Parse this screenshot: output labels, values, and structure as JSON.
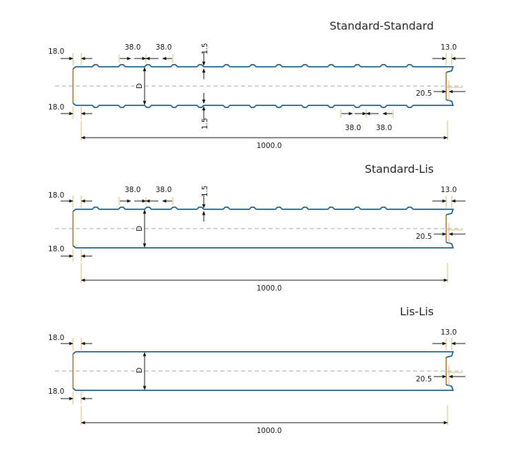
{
  "colors": {
    "panel_line": "#1f5f8a",
    "edge_line": "#b07a2a",
    "dim_line": "#111111",
    "ext_line": "#d8b870",
    "center_line": "#a8a8a8"
  },
  "sections": [
    {
      "title": "Standard-Standard",
      "top_profile": "standard",
      "bottom_profile": "standard",
      "dims": {
        "left_top": "18.0",
        "left_bottom": "18.0",
        "right_top": "13.0",
        "right_side": "20.5",
        "rib_a": "38.0",
        "rib_b": "38.0",
        "rib_c": "38.0",
        "rib_d": "38.0",
        "rib_h_top": "1.5",
        "rib_h_bottom": "1.5",
        "thickness": "D",
        "width": "1000.0"
      }
    },
    {
      "title": "Standard-Lis",
      "top_profile": "standard",
      "bottom_profile": "lis",
      "dims": {
        "left_top": "18.0",
        "left_bottom": "18.0",
        "right_top": "13.0",
        "right_side": "20.5",
        "rib_a": "38.0",
        "rib_b": "38.0",
        "rib_h_top": "1.5",
        "thickness": "D",
        "width": "1000.0"
      }
    },
    {
      "title": "Lis-Lis",
      "top_profile": "lis",
      "bottom_profile": "lis",
      "dims": {
        "left_top": "18.0",
        "left_bottom": "18.0",
        "right_top": "13.0",
        "right_side": "20.5",
        "thickness": "D",
        "width": "1000.0"
      }
    }
  ]
}
